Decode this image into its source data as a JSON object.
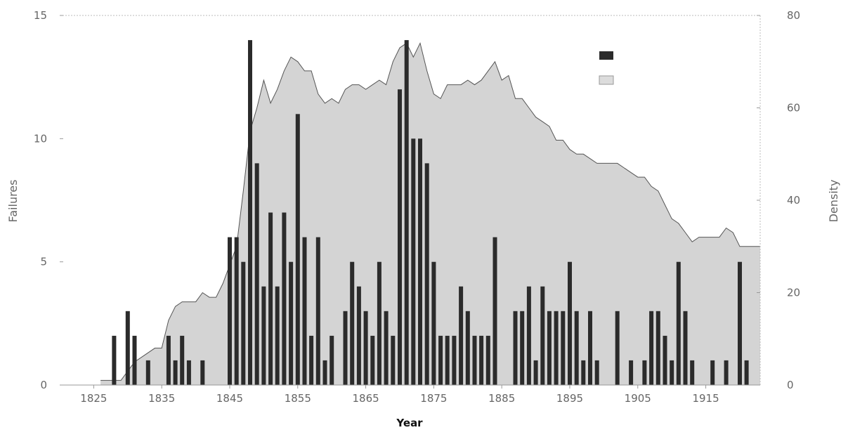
{
  "chart_data": {
    "type": "bar",
    "title": "",
    "xlabel": "Year",
    "ylabel": "Failures",
    "y2label": "Density",
    "xlim": [
      1820,
      1923
    ],
    "ylim": [
      0,
      15
    ],
    "y2lim": [
      0,
      80
    ],
    "x_ticks": [
      1825,
      1835,
      1845,
      1855,
      1865,
      1875,
      1885,
      1895,
      1905,
      1915
    ],
    "y_ticks": [
      0,
      5,
      10,
      15
    ],
    "y2_ticks": [
      0,
      20,
      40,
      60,
      80
    ],
    "legend": {
      "position": "top-right",
      "labels": [
        "",
        ""
      ]
    },
    "colors": {
      "bars": "#2b2b2b",
      "area_fill": "#d4d4d4",
      "area_line": "#555555",
      "axis_text": "#666666"
    },
    "grid": false,
    "series": [
      {
        "type": "bar",
        "axis": "left",
        "x": [
          1828,
          1830,
          1831,
          1833,
          1836,
          1837,
          1838,
          1839,
          1841,
          1845,
          1846,
          1847,
          1848,
          1849,
          1850,
          1851,
          1852,
          1853,
          1854,
          1855,
          1856,
          1857,
          1858,
          1859,
          1860,
          1862,
          1863,
          1864,
          1865,
          1866,
          1867,
          1868,
          1869,
          1870,
          1871,
          1872,
          1873,
          1874,
          1875,
          1876,
          1877,
          1878,
          1879,
          1880,
          1881,
          1882,
          1883,
          1884,
          1885,
          1887,
          1888,
          1889,
          1890,
          1891,
          1892,
          1893,
          1894,
          1895,
          1896,
          1897,
          1898,
          1899,
          1902,
          1904,
          1906,
          1907,
          1908,
          1909,
          1910,
          1911,
          1912,
          1913,
          1914,
          1916,
          1918,
          1920,
          1921
        ],
        "values": [
          2,
          3,
          2,
          1,
          2,
          1,
          2,
          1,
          1,
          6,
          6,
          5,
          14,
          9,
          4,
          7,
          4,
          7,
          5,
          11,
          6,
          2,
          6,
          1,
          2,
          3,
          5,
          4,
          3,
          2,
          5,
          3,
          2,
          12,
          14,
          10,
          10,
          9,
          5,
          2,
          2,
          2,
          4,
          3,
          2,
          2,
          2,
          6,
          0,
          3,
          3,
          4,
          1,
          4,
          3,
          3,
          3,
          5,
          3,
          1,
          3,
          1,
          3,
          1,
          1,
          3,
          3,
          2,
          1,
          5,
          3,
          1,
          0,
          1,
          1,
          5,
          1
        ]
      },
      {
        "type": "area",
        "axis": "right",
        "x": [
          1826,
          1829,
          1830,
          1831,
          1832,
          1834,
          1835,
          1836,
          1837,
          1838,
          1840,
          1841,
          1842,
          1843,
          1844,
          1845,
          1846,
          1847,
          1848,
          1849,
          1850,
          1851,
          1852,
          1853,
          1854,
          1855,
          1856,
          1857,
          1858,
          1859,
          1860,
          1861,
          1862,
          1863,
          1864,
          1865,
          1866,
          1867,
          1868,
          1869,
          1870,
          1871,
          1872,
          1873,
          1874,
          1875,
          1876,
          1877,
          1878,
          1879,
          1880,
          1881,
          1882,
          1883,
          1884,
          1885,
          1886,
          1887,
          1888,
          1889,
          1890,
          1891,
          1892,
          1893,
          1894,
          1895,
          1896,
          1897,
          1898,
          1899,
          1900,
          1901,
          1902,
          1903,
          1904,
          1905,
          1906,
          1907,
          1908,
          1909,
          1910,
          1911,
          1912,
          1913,
          1914,
          1915,
          1916,
          1917,
          1918,
          1919,
          1920,
          1923
        ],
        "values": [
          1,
          1,
          3,
          5,
          6,
          8,
          8,
          14,
          17,
          18,
          18,
          20,
          19,
          19,
          22,
          26,
          30,
          42,
          55,
          60,
          66,
          61,
          64,
          68,
          71,
          70,
          68,
          68,
          63,
          61,
          62,
          61,
          64,
          65,
          65,
          64,
          65,
          66,
          65,
          70,
          73,
          74,
          71,
          74,
          68,
          63,
          62,
          65,
          65,
          65,
          66,
          65,
          66,
          68,
          70,
          66,
          67,
          62,
          62,
          60,
          58,
          57,
          56,
          53,
          53,
          51,
          50,
          50,
          49,
          48,
          48,
          48,
          48,
          47,
          46,
          45,
          45,
          43,
          42,
          39,
          36,
          35,
          33,
          31,
          32,
          32,
          32,
          32,
          34,
          33,
          30,
          30
        ]
      }
    ]
  }
}
